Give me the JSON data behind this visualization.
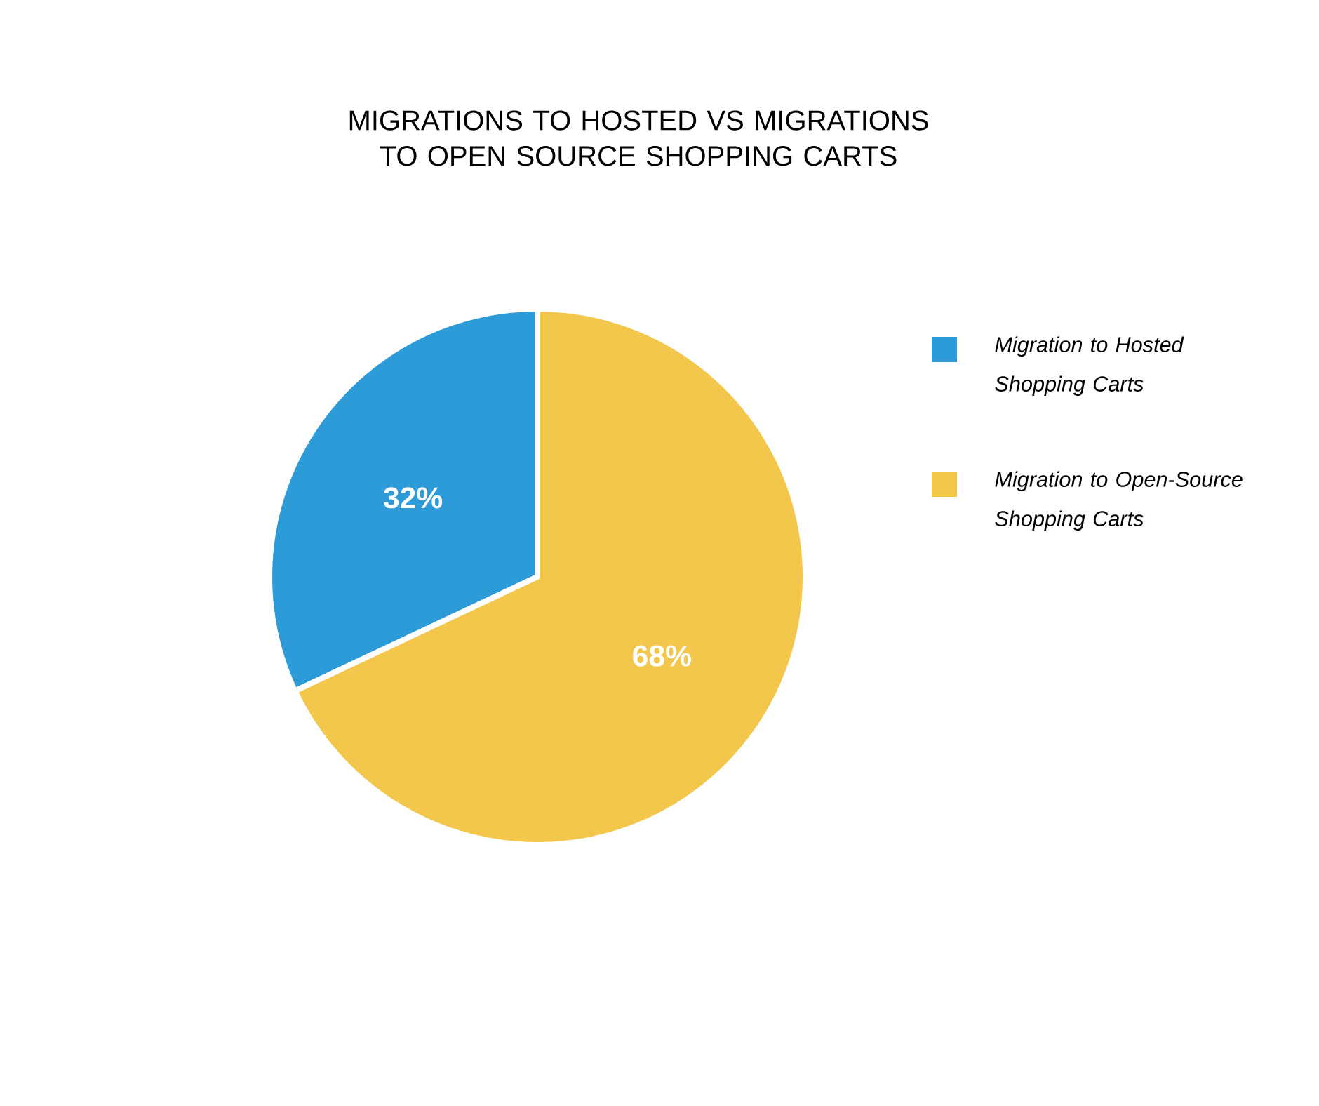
{
  "chart_data": {
    "type": "pie",
    "title": "MIGRATIONS TO HOSTED VS MIGRATIONS TO OPEN SOURCE SHOPPING CARTS",
    "categories": [
      "Migration to Hosted Shopping Carts",
      "Migration to Open-Source Shopping Carts"
    ],
    "values": [
      32,
      68
    ],
    "colors": [
      "#2e9bd9",
      "#f2c74c"
    ],
    "value_labels": [
      "32%",
      "68%"
    ],
    "legend": "right"
  }
}
